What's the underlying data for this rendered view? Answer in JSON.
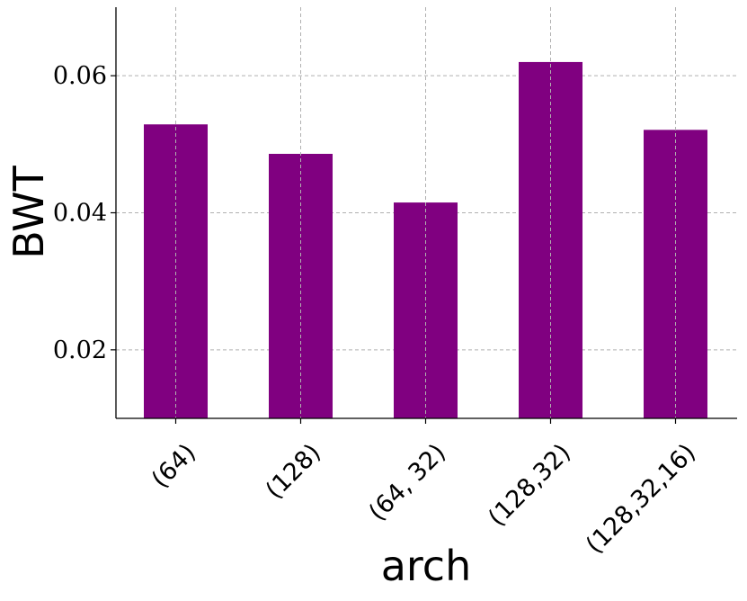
{
  "chart_data": {
    "type": "bar",
    "title": "",
    "xlabel": "arch",
    "ylabel": "BWT",
    "categories": [
      "(64)",
      "(128)",
      "(64, 32)",
      "(128,32)",
      "(128,32,16)"
    ],
    "values": [
      0.0529,
      0.0486,
      0.0415,
      0.062,
      0.0521
    ],
    "ylim": [
      0.01,
      0.07
    ],
    "yticks": [
      0.02,
      0.04,
      0.06
    ],
    "ytick_labels": [
      "0.02",
      "0.04",
      "0.06"
    ],
    "grid": true,
    "bar_color": "#800080",
    "grid_color": "#b0b0b0"
  }
}
